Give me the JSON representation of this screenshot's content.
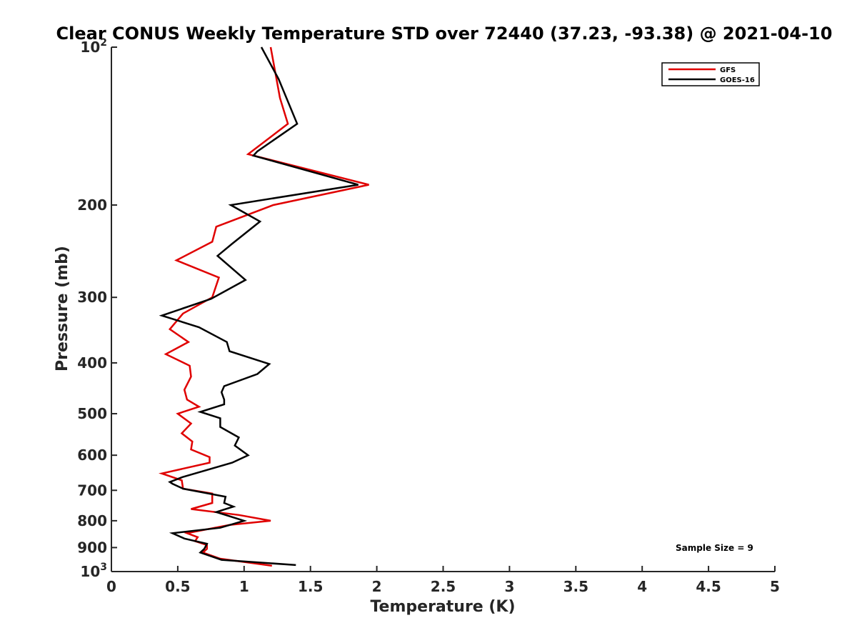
{
  "chart_data": {
    "type": "line",
    "title": "Clear CONUS Weekly Temperature STD over 72440 (37.23, -93.38) @ 2021-04-10",
    "xlabel": "Temperature (K)",
    "ylabel": "Pressure (mb)",
    "xlim": [
      0,
      5
    ],
    "ylim": [
      100,
      1000
    ],
    "y_scale": "log",
    "y_reversed": true,
    "grid": false,
    "legend_position": "top-right",
    "x_ticks": [
      0,
      0.5,
      1,
      1.5,
      2,
      2.5,
      3,
      3.5,
      4,
      4.5,
      5
    ],
    "x_tick_labels": [
      "0",
      "0.5",
      "1",
      "1.5",
      "2",
      "2.5",
      "3",
      "3.5",
      "4",
      "4.5",
      "5"
    ],
    "y_ticks": [
      {
        "value": 100,
        "label": "10",
        "sup": "2"
      },
      {
        "value": 200,
        "label": "200",
        "sup": ""
      },
      {
        "value": 300,
        "label": "300",
        "sup": ""
      },
      {
        "value": 400,
        "label": "400",
        "sup": ""
      },
      {
        "value": 500,
        "label": "500",
        "sup": ""
      },
      {
        "value": 600,
        "label": "600",
        "sup": ""
      },
      {
        "value": 700,
        "label": "700",
        "sup": ""
      },
      {
        "value": 800,
        "label": "800",
        "sup": ""
      },
      {
        "value": 900,
        "label": "900",
        "sup": ""
      },
      {
        "value": 1000,
        "label": "10",
        "sup": "3"
      }
    ],
    "annotation": "Sample Size = 9",
    "series": [
      {
        "name": "GFS",
        "color": "#e00000",
        "points": [
          [
            1.2,
            100
          ],
          [
            1.27,
            125
          ],
          [
            1.33,
            140
          ],
          [
            1.03,
            160
          ],
          [
            1.94,
            183
          ],
          [
            1.22,
            200
          ],
          [
            0.79,
            220
          ],
          [
            0.76,
            235
          ],
          [
            0.49,
            255
          ],
          [
            0.81,
            275
          ],
          [
            0.76,
            300
          ],
          [
            0.54,
            322
          ],
          [
            0.44,
            345
          ],
          [
            0.58,
            365
          ],
          [
            0.41,
            385
          ],
          [
            0.59,
            405
          ],
          [
            0.6,
            425
          ],
          [
            0.55,
            450
          ],
          [
            0.57,
            470
          ],
          [
            0.66,
            485
          ],
          [
            0.5,
            500
          ],
          [
            0.6,
            522
          ],
          [
            0.53,
            545
          ],
          [
            0.61,
            565
          ],
          [
            0.6,
            585
          ],
          [
            0.74,
            605
          ],
          [
            0.74,
            620
          ],
          [
            0.38,
            650
          ],
          [
            0.53,
            670
          ],
          [
            0.54,
            695
          ],
          [
            0.76,
            710
          ],
          [
            0.76,
            740
          ],
          [
            0.6,
            760
          ],
          [
            0.96,
            780
          ],
          [
            1.2,
            800
          ],
          [
            0.89,
            815
          ],
          [
            0.57,
            845
          ],
          [
            0.65,
            860
          ],
          [
            0.63,
            875
          ],
          [
            0.72,
            890
          ],
          [
            0.72,
            905
          ],
          [
            0.69,
            920
          ],
          [
            0.82,
            945
          ],
          [
            1.21,
            975
          ]
        ]
      },
      {
        "name": "GOES-16",
        "color": "#000000",
        "points": [
          [
            1.13,
            100
          ],
          [
            1.26,
            115
          ],
          [
            1.4,
            140
          ],
          [
            1.1,
            158
          ],
          [
            1.07,
            161
          ],
          [
            1.86,
            183
          ],
          [
            0.9,
            200
          ],
          [
            1.12,
            215
          ],
          [
            0.91,
            237
          ],
          [
            0.8,
            250
          ],
          [
            1.01,
            278
          ],
          [
            0.75,
            302
          ],
          [
            0.38,
            325
          ],
          [
            0.66,
            342
          ],
          [
            0.87,
            365
          ],
          [
            0.89,
            380
          ],
          [
            1.19,
            402
          ],
          [
            1.1,
            420
          ],
          [
            0.85,
            443
          ],
          [
            0.83,
            455
          ],
          [
            0.85,
            470
          ],
          [
            0.85,
            480
          ],
          [
            0.67,
            496
          ],
          [
            0.82,
            510
          ],
          [
            0.82,
            530
          ],
          [
            0.96,
            555
          ],
          [
            0.93,
            575
          ],
          [
            1.03,
            600
          ],
          [
            0.91,
            620
          ],
          [
            0.54,
            660
          ],
          [
            0.44,
            675
          ],
          [
            0.46,
            680
          ],
          [
            0.54,
            695
          ],
          [
            0.86,
            720
          ],
          [
            0.85,
            740
          ],
          [
            0.92,
            752
          ],
          [
            0.79,
            770
          ],
          [
            1.0,
            800
          ],
          [
            0.82,
            825
          ],
          [
            0.46,
            845
          ],
          [
            0.55,
            865
          ],
          [
            0.72,
            885
          ],
          [
            0.7,
            905
          ],
          [
            0.67,
            920
          ],
          [
            0.83,
            950
          ],
          [
            1.39,
            972
          ]
        ]
      }
    ]
  }
}
